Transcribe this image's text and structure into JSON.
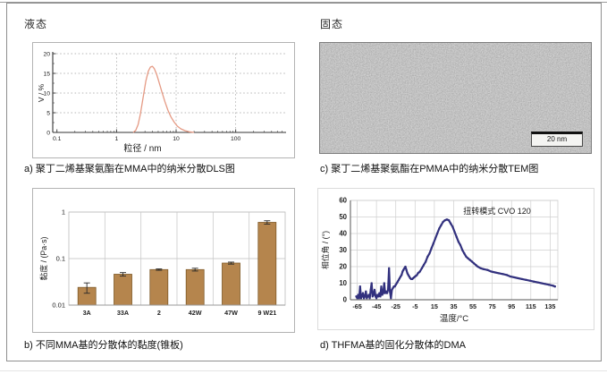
{
  "header": {
    "liquid": "液态",
    "solid": "固态"
  },
  "captions": {
    "a": "a) 聚丁二烯基聚氨酯在MMA中的纳米分散DLS图",
    "b": "b) 不同MMA基的分散体的黏度(锥板)",
    "c": "c) 聚丁二烯基聚氨酯在PMMA中的纳米分散TEM图",
    "d": "d) THFMA基的固化分散体的DMA"
  },
  "tem": {
    "scale_bar": "20 nm"
  },
  "colors": {
    "dls_line": "#e59a84",
    "bar_fill": "#b5854d",
    "bar_edge": "#7f5a28",
    "dma_marker": "#32317e",
    "grid_light": "#c9c9c9",
    "axis_dark": "#3a3a3a"
  },
  "chart_data": [
    {
      "id": "dls",
      "type": "line",
      "title": "",
      "xlabel": "粒径 / nm",
      "ylabel": "V / %",
      "x_scale": "log",
      "xlim": [
        0.085,
        700
      ],
      "ylim": [
        0,
        20
      ],
      "x_ticks": [
        0.1,
        1,
        10,
        100
      ],
      "y_ticks": [
        0,
        5,
        10,
        15,
        20
      ],
      "grid": "dotted",
      "line_color": "#e59a84",
      "points": [
        [
          1.9,
          0
        ],
        [
          2.1,
          0.5
        ],
        [
          2.3,
          2.0
        ],
        [
          2.5,
          4.5
        ],
        [
          2.8,
          9.0
        ],
        [
          3.1,
          13.0
        ],
        [
          3.4,
          15.5
        ],
        [
          3.7,
          16.6
        ],
        [
          4.0,
          16.8
        ],
        [
          4.3,
          16.2
        ],
        [
          4.7,
          14.8
        ],
        [
          5.2,
          12.6
        ],
        [
          5.8,
          10.2
        ],
        [
          6.5,
          7.8
        ],
        [
          7.3,
          5.6
        ],
        [
          8.2,
          3.9
        ],
        [
          9.3,
          2.6
        ],
        [
          10.5,
          1.6
        ],
        [
          12,
          0.9
        ],
        [
          14,
          0.45
        ],
        [
          16.5,
          0.15
        ],
        [
          20,
          0
        ]
      ]
    },
    {
      "id": "viscosity",
      "type": "bar",
      "title": "",
      "xlabel": "",
      "ylabel": "黏度 / (Pa·s)",
      "y_scale": "log",
      "ylim": [
        0.01,
        1
      ],
      "y_ticks": [
        0.01,
        0.1,
        1
      ],
      "categories": [
        "3A",
        "33A",
        "2",
        "42W",
        "47W",
        "9 W21"
      ],
      "values": [
        0.024,
        0.046,
        0.058,
        0.058,
        0.08,
        0.6
      ],
      "errors": [
        0.006,
        0.004,
        0.002,
        0.004,
        0.004,
        0.05
      ],
      "bar_color": "#b5854d",
      "bar_edge": "#7f5a28"
    },
    {
      "id": "dma",
      "type": "scatter",
      "title": "",
      "annotation": "扭转模式 CVO 120",
      "xlabel": "温度/°C",
      "ylabel": "相位角 / (°)",
      "xlim": [
        -72,
        143
      ],
      "ylim": [
        0,
        60
      ],
      "x_ticks": [
        -65,
        -45,
        -25,
        -5,
        15,
        35,
        55,
        75,
        95,
        115,
        135
      ],
      "y_ticks": [
        0,
        10,
        20,
        30,
        40,
        50,
        60
      ],
      "grid": "solid",
      "marker_color": "#32317e",
      "points": [
        [
          -66,
          2
        ],
        [
          -65,
          1
        ],
        [
          -64,
          3
        ],
        [
          -63,
          1
        ],
        [
          -62,
          8
        ],
        [
          -61,
          1
        ],
        [
          -60,
          2
        ],
        [
          -59,
          4
        ],
        [
          -58,
          1
        ],
        [
          -57,
          2
        ],
        [
          -56,
          5
        ],
        [
          -55,
          1
        ],
        [
          -54,
          2
        ],
        [
          -53,
          3
        ],
        [
          -52,
          1
        ],
        [
          -51,
          6
        ],
        [
          -50,
          10
        ],
        [
          -49,
          2
        ],
        [
          -48,
          3
        ],
        [
          -47,
          6
        ],
        [
          -46,
          2
        ],
        [
          -45,
          1
        ],
        [
          -44,
          3
        ],
        [
          -43,
          2
        ],
        [
          -42,
          4
        ],
        [
          -41,
          2
        ],
        [
          -40,
          8
        ],
        [
          -39,
          3
        ],
        [
          -38,
          4
        ],
        [
          -37,
          10
        ],
        [
          -36,
          4
        ],
        [
          -35,
          5
        ],
        [
          -34,
          4
        ],
        [
          -33,
          6
        ],
        [
          -32,
          19
        ],
        [
          -31,
          5
        ],
        [
          -30,
          1
        ],
        [
          -29,
          6
        ],
        [
          -28,
          7
        ],
        [
          -27,
          8
        ],
        [
          -26,
          8
        ],
        [
          -25,
          9
        ],
        [
          -24,
          10
        ],
        [
          -23,
          11
        ],
        [
          -22,
          12
        ],
        [
          -21,
          13
        ],
        [
          -20,
          14
        ],
        [
          -19,
          15
        ],
        [
          -18,
          17
        ],
        [
          -17,
          18
        ],
        [
          -16,
          19
        ],
        [
          -15,
          20
        ],
        [
          -14,
          18
        ],
        [
          -13,
          16
        ],
        [
          -12,
          15
        ],
        [
          -11,
          14
        ],
        [
          -10,
          13
        ],
        [
          -9,
          12.5
        ],
        [
          -8,
          12.5
        ],
        [
          -7,
          13
        ],
        [
          -6,
          13.5
        ],
        [
          -5,
          14
        ],
        [
          -4,
          14.5
        ],
        [
          -3,
          15
        ],
        [
          -2,
          16
        ],
        [
          -1,
          16.5
        ],
        [
          0,
          17
        ],
        [
          2,
          19
        ],
        [
          4,
          21
        ],
        [
          6,
          23
        ],
        [
          8,
          26
        ],
        [
          10,
          28
        ],
        [
          12,
          31
        ],
        [
          14,
          34
        ],
        [
          16,
          37
        ],
        [
          18,
          40
        ],
        [
          20,
          43
        ],
        [
          22,
          45
        ],
        [
          24,
          47
        ],
        [
          26,
          48
        ],
        [
          28,
          48.5
        ],
        [
          30,
          48
        ],
        [
          32,
          46
        ],
        [
          34,
          44
        ],
        [
          36,
          41
        ],
        [
          38,
          38
        ],
        [
          40,
          35
        ],
        [
          42,
          33
        ],
        [
          44,
          30
        ],
        [
          46,
          28
        ],
        [
          48,
          26
        ],
        [
          50,
          25
        ],
        [
          52,
          24
        ],
        [
          54,
          23
        ],
        [
          56,
          22
        ],
        [
          58,
          21
        ],
        [
          60,
          20
        ],
        [
          63,
          19
        ],
        [
          66,
          18.5
        ],
        [
          70,
          18
        ],
        [
          74,
          17
        ],
        [
          78,
          16.5
        ],
        [
          82,
          16
        ],
        [
          86,
          15.5
        ],
        [
          90,
          15
        ],
        [
          94,
          14
        ],
        [
          98,
          13.5
        ],
        [
          102,
          13
        ],
        [
          106,
          12.5
        ],
        [
          110,
          12
        ],
        [
          114,
          11.5
        ],
        [
          118,
          11
        ],
        [
          122,
          10.5
        ],
        [
          126,
          10
        ],
        [
          130,
          9.5
        ],
        [
          134,
          9
        ],
        [
          138,
          8.5
        ],
        [
          140,
          8
        ]
      ]
    }
  ]
}
